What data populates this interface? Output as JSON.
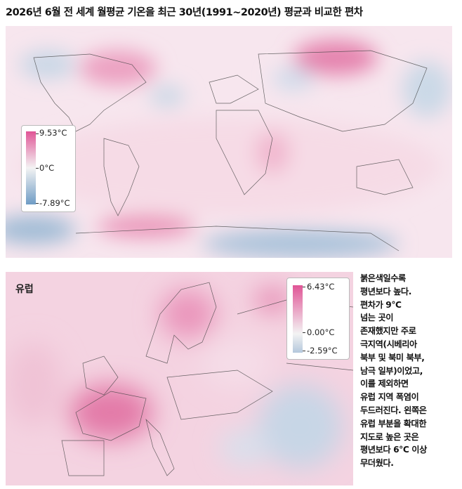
{
  "header": {
    "title": "2026년 6월 전 세계 월평균 기온을 최근 30년(1991~2020년) 평균과 비교한 편차"
  },
  "world_map": {
    "legend": {
      "max_label": "9.53°C",
      "mid_label": "0°C",
      "min_label": "-7.89°C"
    }
  },
  "europe_map": {
    "region_label": "유럽",
    "legend": {
      "max_label": "6.43°C",
      "mid_label": "0.00°C",
      "min_label": "-2.59°C"
    }
  },
  "caption": {
    "lines": [
      "붉은색일수록",
      "평년보다 높다.",
      "편차가 9°C",
      "넘는 곳이",
      "존재했지만 주로",
      "극지역(시베리아",
      "북부 및 북미 북부,",
      "남극 일부)이었고,",
      "이를 제외하면",
      "유럽 지역 폭염이",
      "두드러진다. 왼쪽은",
      "유럽 부분을 확대한",
      "지도로 높은 곳은",
      "평년보다 6°C 이상",
      "무더웠다."
    ]
  }
}
